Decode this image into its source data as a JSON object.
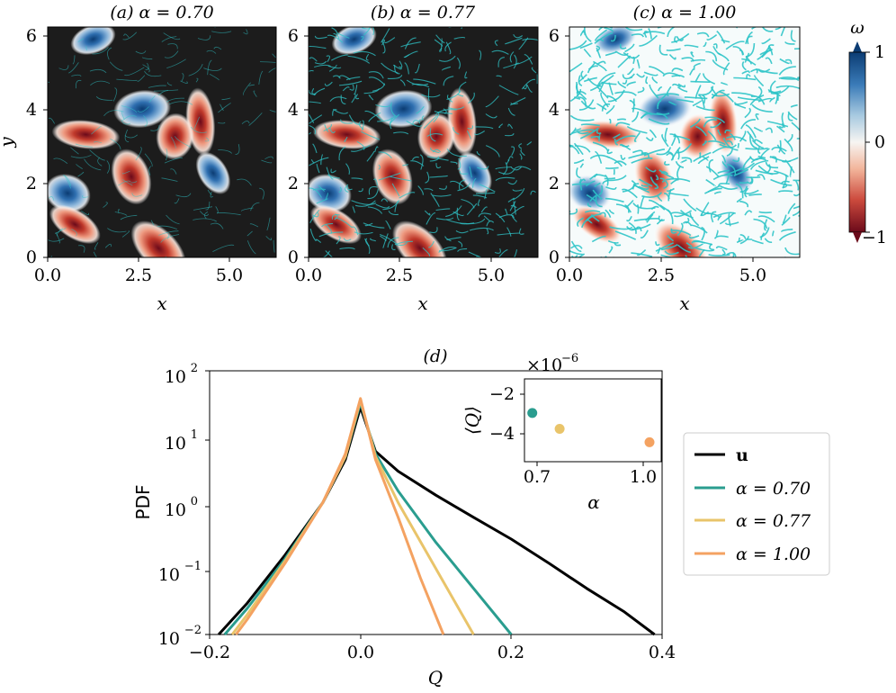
{
  "colors": {
    "series_u": "#000000",
    "series_070": "#2a9d8f",
    "series_077": "#e9c46a",
    "series_100": "#f4a261",
    "vort_pos": "#1f5f9f",
    "vort_neg": "#b2182b",
    "particle": "#2fc4c8",
    "background_dark": "#1a1a1a"
  },
  "chart_data": [
    {
      "type": "heatmap",
      "title": "(a) α = 0.70",
      "xlabel": "x",
      "ylabel": "y",
      "xlim": [
        0,
        6.283
      ],
      "ylim": [
        0,
        6.283
      ],
      "xticks": [
        "0.0",
        "2.5",
        "5.0"
      ],
      "yticks": [
        "0",
        "2",
        "4",
        "6"
      ],
      "alpha": 0.7,
      "particle_density": "low",
      "vortices": [
        {
          "x": 1.25,
          "y": 5.95,
          "w": 1
        },
        {
          "x": 2.6,
          "y": 4.05,
          "w": 1
        },
        {
          "x": 1.05,
          "y": 3.35,
          "w": -1
        },
        {
          "x": 0.55,
          "y": 1.75,
          "w": 1
        },
        {
          "x": 0.75,
          "y": 0.9,
          "w": -1
        },
        {
          "x": 3.05,
          "y": 0.25,
          "w": -1
        },
        {
          "x": 4.55,
          "y": 2.3,
          "w": 1
        },
        {
          "x": 2.3,
          "y": 2.2,
          "w": -1
        },
        {
          "x": 4.2,
          "y": 3.7,
          "w": -1
        },
        {
          "x": 3.5,
          "y": 3.3,
          "w": -1
        }
      ]
    },
    {
      "type": "heatmap",
      "title": "(b) α = 0.77",
      "xlabel": "x",
      "ylabel": "",
      "xlim": [
        0,
        6.283
      ],
      "ylim": [
        0,
        6.283
      ],
      "xticks": [
        "0.0",
        "2.5",
        "5.0"
      ],
      "yticks": [
        "0",
        "2",
        "4",
        "6"
      ],
      "alpha": 0.77,
      "particle_density": "medium",
      "vortices": [
        {
          "x": 1.25,
          "y": 5.95,
          "w": 1
        },
        {
          "x": 2.6,
          "y": 4.05,
          "w": 1
        },
        {
          "x": 1.05,
          "y": 3.35,
          "w": -1
        },
        {
          "x": 0.55,
          "y": 1.75,
          "w": 1
        },
        {
          "x": 0.75,
          "y": 0.9,
          "w": -1
        },
        {
          "x": 3.05,
          "y": 0.25,
          "w": -1
        },
        {
          "x": 4.55,
          "y": 2.3,
          "w": 1
        },
        {
          "x": 2.3,
          "y": 2.2,
          "w": -1
        },
        {
          "x": 4.2,
          "y": 3.7,
          "w": -1
        },
        {
          "x": 3.5,
          "y": 3.3,
          "w": -1
        }
      ]
    },
    {
      "type": "heatmap",
      "title": "(c) α = 1.00",
      "xlabel": "x",
      "ylabel": "",
      "xlim": [
        0,
        6.283
      ],
      "ylim": [
        0,
        6.283
      ],
      "xticks": [
        "0.0",
        "2.5",
        "5.0"
      ],
      "yticks": [
        "0",
        "2",
        "4",
        "6"
      ],
      "alpha": 1.0,
      "particle_density": "high",
      "vortices": [
        {
          "x": 1.25,
          "y": 5.95,
          "w": 1
        },
        {
          "x": 2.6,
          "y": 4.05,
          "w": 1
        },
        {
          "x": 1.05,
          "y": 3.35,
          "w": -1
        },
        {
          "x": 0.55,
          "y": 1.75,
          "w": 1
        },
        {
          "x": 0.75,
          "y": 0.9,
          "w": -1
        },
        {
          "x": 3.05,
          "y": 0.25,
          "w": -1
        },
        {
          "x": 4.55,
          "y": 2.3,
          "w": 1
        },
        {
          "x": 2.3,
          "y": 2.2,
          "w": -1
        },
        {
          "x": 4.2,
          "y": 3.7,
          "w": -1
        },
        {
          "x": 3.5,
          "y": 3.3,
          "w": -1
        }
      ],
      "colorbar": {
        "label": "ω",
        "range": [
          -1,
          1
        ],
        "ticks": [
          "1",
          "0",
          "−1"
        ]
      }
    },
    {
      "type": "line",
      "title": "(d)",
      "xlabel": "Q",
      "ylabel": "PDF",
      "xlim": [
        -0.2,
        0.4
      ],
      "ylim": [
        0.01,
        100
      ],
      "yscale": "log",
      "xticks": [
        "−0.2",
        "0.0",
        "0.2",
        "0.4"
      ],
      "yticks": [
        "10",
        "10",
        "10",
        "10",
        "10"
      ],
      "ytick_exponents": [
        "2",
        "1",
        "0",
        "−1",
        "−2"
      ],
      "legend_position": "right-outside",
      "series": [
        {
          "name": "u",
          "color_key": "series_u",
          "x": [
            -0.188,
            -0.15,
            -0.1,
            -0.05,
            -0.02,
            0.0,
            0.02,
            0.05,
            0.1,
            0.15,
            0.2,
            0.25,
            0.3,
            0.35,
            0.39
          ],
          "y": [
            0.01,
            0.03,
            0.16,
            1.0,
            4.5,
            28,
            6.0,
            3.0,
            1.3,
            0.6,
            0.28,
            0.12,
            0.05,
            0.022,
            0.01
          ]
        },
        {
          "name": "α = 0.70",
          "color_key": "series_070",
          "x": [
            -0.18,
            -0.15,
            -0.1,
            -0.05,
            -0.02,
            0.0,
            0.02,
            0.05,
            0.1,
            0.15,
            0.2
          ],
          "y": [
            0.01,
            0.025,
            0.14,
            1.0,
            5.0,
            33,
            5.5,
            1.5,
            0.25,
            0.05,
            0.01
          ]
        },
        {
          "name": "α = 0.77",
          "color_key": "series_077",
          "x": [
            -0.17,
            -0.15,
            -0.1,
            -0.05,
            -0.02,
            0.0,
            0.02,
            0.05,
            0.1,
            0.15
          ],
          "y": [
            0.01,
            0.02,
            0.13,
            1.0,
            5.0,
            36,
            5.0,
            1.0,
            0.1,
            0.01
          ]
        },
        {
          "name": "α = 1.00",
          "color_key": "series_100",
          "x": [
            -0.165,
            -0.15,
            -0.1,
            -0.05,
            -0.02,
            0.0,
            0.02,
            0.05,
            0.08,
            0.11
          ],
          "y": [
            0.01,
            0.017,
            0.12,
            1.0,
            5.5,
            38,
            4.5,
            0.6,
            0.07,
            0.01
          ]
        }
      ]
    },
    {
      "type": "scatter",
      "title": "",
      "xlabel": "α",
      "ylabel": "⟨Q⟩",
      "multiplier": "×10",
      "multiplier_exponent": "−6",
      "xlim": [
        0.68,
        1.03
      ],
      "ylim": [
        -4.6,
        -1.2
      ],
      "xticks": [
        "0.7",
        "1.0"
      ],
      "yticks": [
        "−2",
        "−4"
      ],
      "points": [
        {
          "x": 0.7,
          "y": -2.6,
          "color_key": "series_070"
        },
        {
          "x": 0.77,
          "y": -3.25,
          "color_key": "series_077"
        },
        {
          "x": 1.0,
          "y": -3.8,
          "color_key": "series_100"
        }
      ]
    }
  ]
}
